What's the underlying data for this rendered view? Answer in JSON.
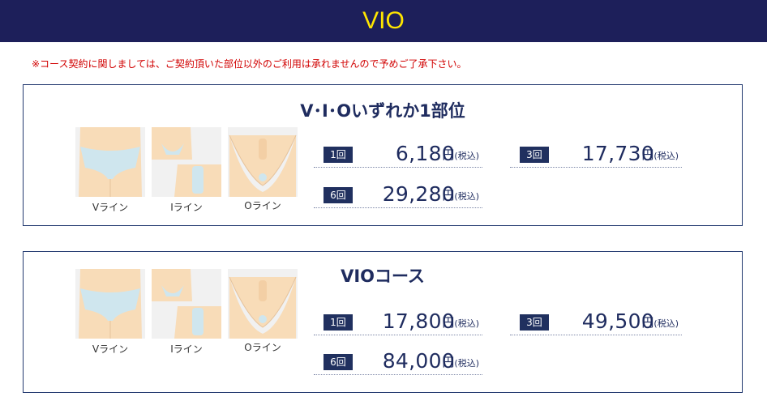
{
  "header": {
    "title": "VIO"
  },
  "notice": "※コース契約に関しましては、ご契約頂いた部位以外のご利用は承れませんので予めご了承下さい。",
  "labels": {
    "v": "Vライン",
    "i": "Iライン",
    "o": "Oライン"
  },
  "currency": {
    "yen": "円",
    "tax": "(税込)"
  },
  "cards": [
    {
      "title": "V･I･Oいずれか1部位",
      "prices": [
        {
          "count": "1回",
          "amount": "6,180"
        },
        {
          "count": "6回",
          "amount": "29,280"
        },
        {
          "count": "3回",
          "amount": "17,730"
        }
      ]
    },
    {
      "title": "VIOコース",
      "prices": [
        {
          "count": "1回",
          "amount": "17,800"
        },
        {
          "count": "6回",
          "amount": "84,000"
        },
        {
          "count": "3回",
          "amount": "49,500"
        }
      ]
    }
  ],
  "colors": {
    "header_bg": "#1d1f5a",
    "header_text": "#ffe600",
    "notice": "#d10000",
    "navy": "#1f2c5f",
    "skin": "#f8dcb8",
    "garment": "#cfe6ee"
  }
}
